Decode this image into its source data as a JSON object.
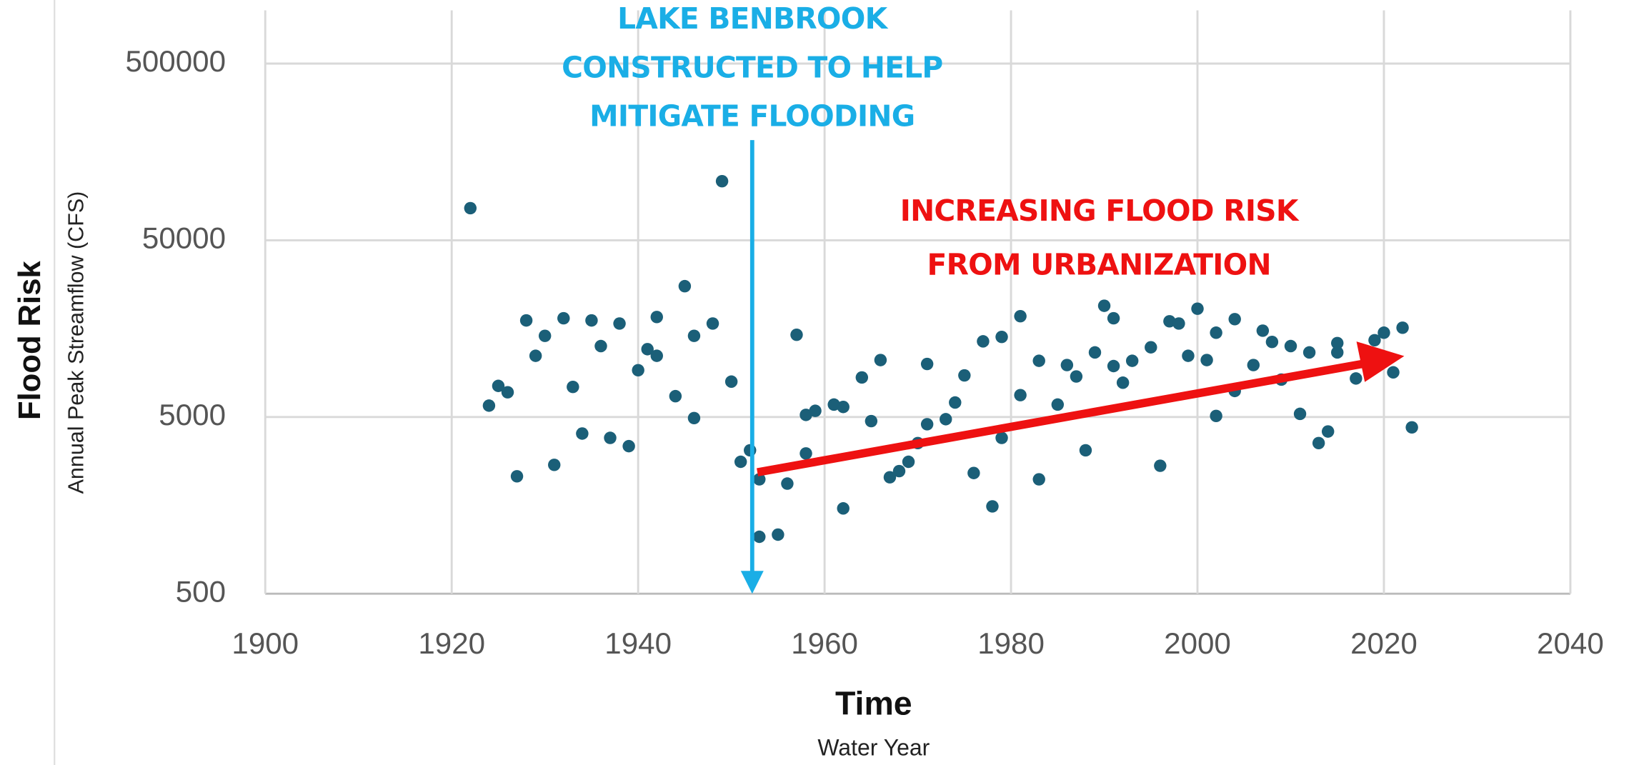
{
  "chart_data": {
    "type": "scatter",
    "x_label": "Time",
    "x_sublabel": "Water Year",
    "y_label": "Flood Risk",
    "y_sublabel": "Annual Peak Streamflow (CFS)",
    "annotations": [
      {
        "lines": [
          "LAKE BENBROOK",
          "CONSTRUCTED TO HELP",
          "MITIGATE FLOODING"
        ],
        "color": "#1aaee6"
      },
      {
        "lines": [
          "INCREASING FLOOD RISK",
          "FROM URBANIZATION"
        ],
        "color": "#ee1111"
      }
    ],
    "xlim": [
      1900,
      2040
    ],
    "xticks": [
      1900,
      1920,
      1940,
      1960,
      1980,
      2000,
      2020,
      2040
    ],
    "ylim": [
      500,
      1000000
    ],
    "yticks": [
      500,
      5000,
      50000,
      500000
    ],
    "log_y": true,
    "grid": true,
    "color": "#1b5f78",
    "x": [
      1922,
      1924,
      1925,
      1926,
      1927,
      1928,
      1929,
      1930,
      1931,
      1932,
      1933,
      1934,
      1935,
      1936,
      1937,
      1938,
      1939,
      1940,
      1941,
      1942,
      1942,
      1944,
      1945,
      1946,
      1946,
      1948,
      1949,
      1950,
      1951,
      1952,
      1953,
      1953,
      1955,
      1956,
      1957,
      1958,
      1958,
      1959,
      1961,
      1962,
      1962,
      1964,
      1965,
      1966,
      1967,
      1968,
      1969,
      1970,
      1971,
      1971,
      1973,
      1974,
      1975,
      1976,
      1977,
      1978,
      1979,
      1979,
      1981,
      1981,
      1983,
      1983,
      1985,
      1986,
      1987,
      1988,
      1989,
      1990,
      1991,
      1991,
      1992,
      1993,
      1995,
      1996,
      1997,
      1998,
      1999,
      2000,
      2001,
      2002,
      2002,
      2004,
      2004,
      2006,
      2007,
      2008,
      2009,
      2010,
      2011,
      2012,
      2013,
      2014,
      2015,
      2015,
      2017,
      2019,
      2020,
      2021,
      2022,
      2023
    ],
    "values": [
      76000,
      5800,
      7500,
      6900,
      2310,
      17600,
      11100,
      14400,
      2680,
      18100,
      7400,
      4030,
      17600,
      12600,
      3810,
      16900,
      3420,
      9200,
      12100,
      11100,
      18400,
      6560,
      27500,
      4930,
      14400,
      16900,
      108000,
      7930,
      2790,
      3240,
      2220,
      1050,
      1080,
      2100,
      14600,
      3110,
      5140,
      5420,
      5880,
      5700,
      1520,
      8370,
      4740,
      10500,
      2280,
      2470,
      2790,
      3560,
      4550,
      9980,
      4860,
      6040,
      8600,
      2410,
      13400,
      1560,
      14200,
      3810,
      18600,
      6650,
      10400,
      2220,
      5880,
      9840,
      8480,
      3240,
      11600,
      21300,
      18100,
      9710,
      7820,
      10400,
      12400,
      2650,
      17400,
      16900,
      11100,
      20500,
      10500,
      15000,
      5070,
      17900,
      7020,
      9840,
      15400,
      13300,
      8140,
      12600,
      5210,
      11600,
      3560,
      4140,
      13100,
      11600,
      8260,
      13600,
      15000,
      8950,
      16000,
      4370
    ]
  }
}
